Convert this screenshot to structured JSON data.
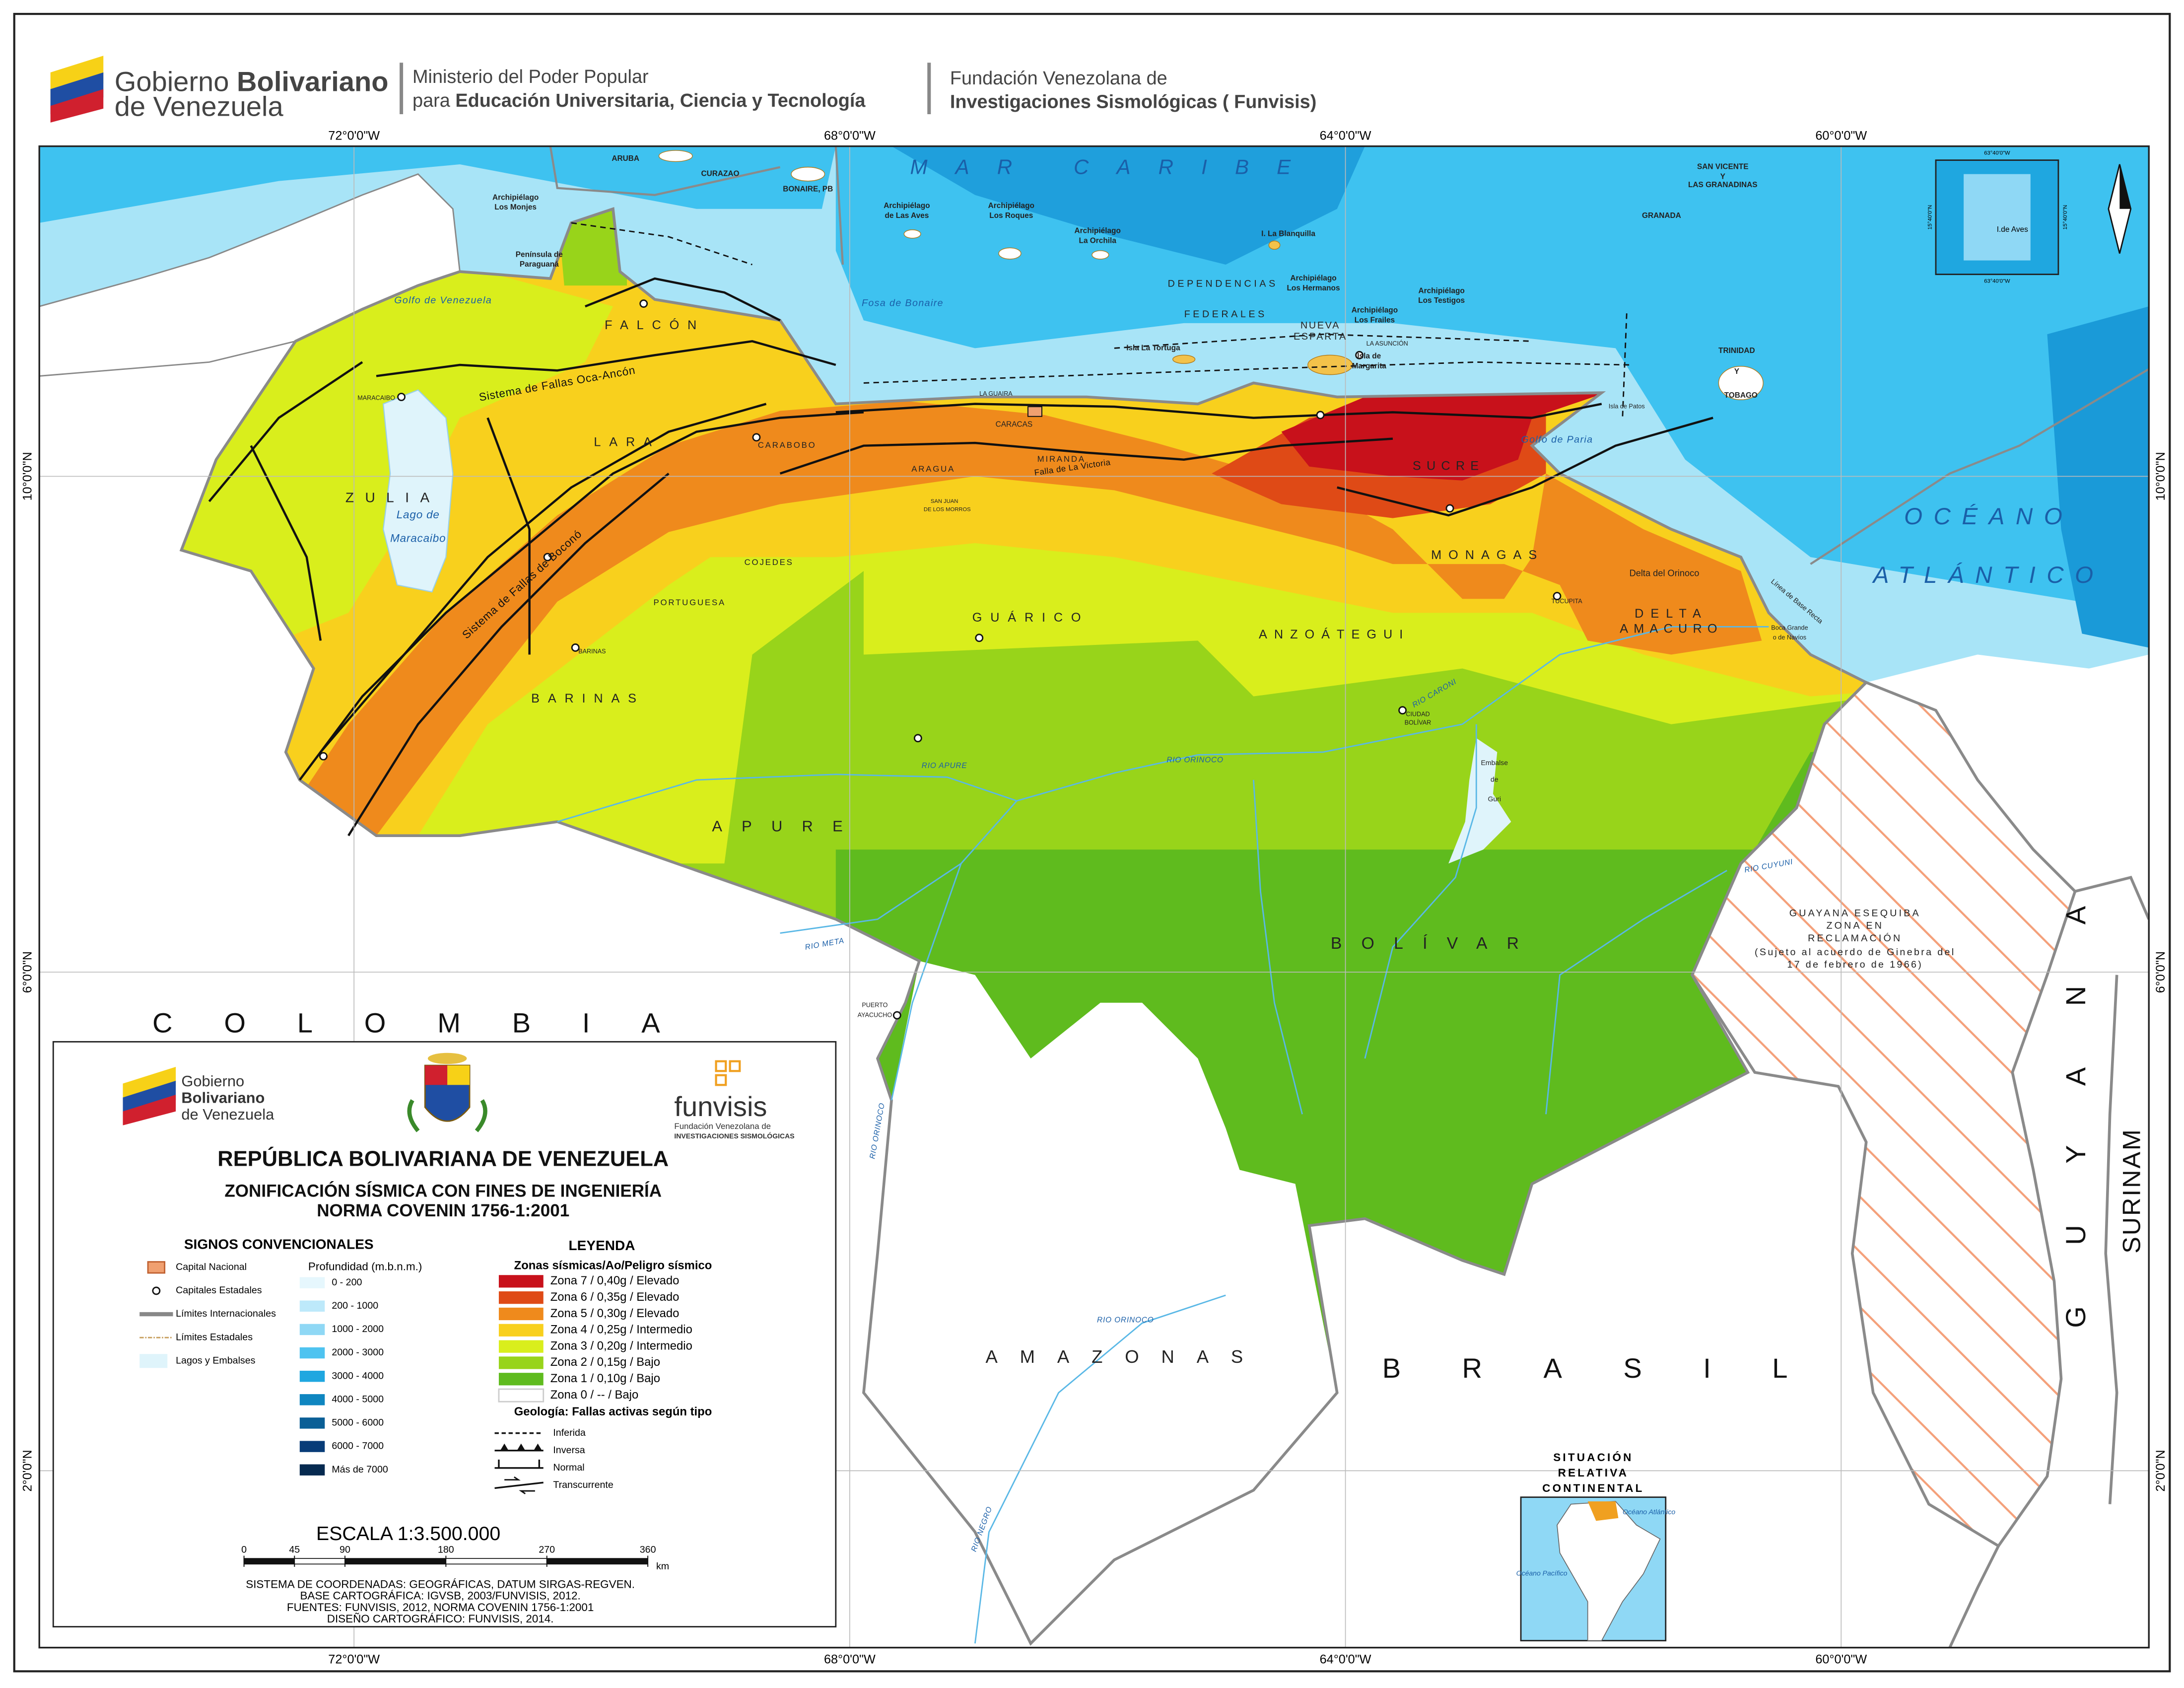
{
  "header": {
    "gov_logo": [
      "Gobierno",
      "Bolivariano",
      "de Venezuela"
    ],
    "ministry": [
      "Ministerio del Poder Popular",
      "para",
      "Educación Universitaria, Ciencia y Tecnología"
    ],
    "foundation": [
      "Fundación Venezolana de",
      "Investigaciones Sismológicas ( Funvisis)"
    ]
  },
  "graticule": {
    "longitudes": [
      "72°0'0\"W",
      "68°0'0\"W",
      "64°0'0\"W",
      "60°0'0\"W"
    ],
    "latitudes": [
      "10°0'0\"N",
      "6°0'0\"N",
      "2°0'0\"N"
    ]
  },
  "map_labels": {
    "countries": [
      "COLOMBIA",
      "BRASIL",
      "GUYANA",
      "SURINAM"
    ],
    "seas": [
      "MAR CARIBE",
      "OCÉANO",
      "ATLÁNTICO",
      "Golfo de Venezuela",
      "Fosa de Bonaire",
      "Golfo de Paria",
      "Lago de",
      "Maracaibo"
    ],
    "states": [
      "FALCÓN",
      "ZULIA",
      "LARA",
      "PORTUGUESA",
      "COJEDES",
      "BARINAS",
      "APURE",
      "GUÁRICO",
      "ANZOÁTEGUI",
      "MONAGAS",
      "SUCRE",
      "DELTA",
      "AMACURO",
      "BOLÍVAR",
      "AMAZONAS",
      "MIRANDA",
      "CARABOBO",
      "ARAGUA",
      "NUEVA",
      "ESPARTA",
      "DEPENDENCIAS",
      "FEDERALES"
    ],
    "islands": [
      "ARUBA",
      "CURAZAO",
      "BONAIRE, PB",
      "Archipiélago",
      "Los Monjes",
      "Península de",
      "Paraguaná",
      "Archipiélago",
      "de Las Aves",
      "Archipiélago",
      "Los Roques",
      "Archipiélago",
      "La Orchila",
      "I. La Blanquilla",
      "Archipiélago",
      "Los Hermanos",
      "Archipiélago",
      "Los Frailes",
      "Archipiélago",
      "Los Testigos",
      "Isla La Tortuga",
      "Isla de",
      "Margarita",
      "GRANADA",
      "SAN VICENTE",
      "Y",
      "LAS GRANADINAS",
      "TRINIDAD",
      "Y",
      "TOBAGO"
    ],
    "rivers": [
      "RIO APURE",
      "RIO ORINOCO",
      "RIO META",
      "RIO CARONI",
      "RIO CUYUNI",
      "RIO ORINOCO",
      "RIO NEGRO",
      "RIO ORINOCO"
    ],
    "places": [
      "MARACAIBO",
      "CARACAS",
      "TUCUPITA",
      "PUERTO",
      "AYACUCHO",
      "CIUDAD",
      "BOLÍVAR",
      "SAN JUAN",
      "DE LOS MORROS",
      "LA GUAIRA",
      "BARINAS",
      "Embalse",
      "de",
      "Guri",
      "Delta del Orinoco",
      "Boca Grande",
      "o de Navíos",
      "Línea de Base Recta",
      "LA ASUNCIÓN",
      "Isla de Patos"
    ],
    "faults": [
      "Sistema de Fallas Oca-Ancón",
      "Sistema de Fallas de Boconó",
      "Falla de La Victoria"
    ],
    "esequibo": [
      "GUAYANA ESEQUIBA",
      "ZONA EN",
      "RECLAMACIÓN",
      "(Sujeto al acuerdo de Ginebra del",
      "17 de febrero de 1966)"
    ]
  },
  "insets": {
    "aves": {
      "label": "I.de Aves",
      "coords": [
        "63°40'0\"W",
        "63°40'0\"W",
        "15°40'0\"N",
        "15°40'0\"N"
      ]
    },
    "continental": {
      "title": [
        "SITUACIÓN",
        "RELATIVA",
        "CONTINENTAL"
      ],
      "labels": [
        "Océano Atlántico",
        "Océano Pacífico"
      ]
    }
  },
  "legend": {
    "gov_logo": [
      "Gobierno",
      "Bolivariano",
      "de Venezuela"
    ],
    "funvisis_logo": [
      "funvisis",
      "Fundación Venezolana de",
      "INVESTIGACIONES SISMOLÓGICAS"
    ],
    "titles": [
      "REPÚBLICA BOLIVARIANA DE VENEZUELA",
      "ZONIFICACIÓN SÍSMICA CON FINES DE INGENIERÍA",
      "NORMA COVENIN 1756-1:2001"
    ],
    "signs_title": "SIGNOS CONVENCIONALES",
    "signs": [
      "Capital Nacional",
      "Capitales Estadales",
      "Límites Internacionales",
      "Límites Estadales",
      "Lagos y Embalses"
    ],
    "depth_title": "Profundidad (m.b.n.m.)",
    "depth": [
      {
        "label": "0 - 200",
        "color": "#e6f7fd"
      },
      {
        "label": "200 - 1000",
        "color": "#bde9fa"
      },
      {
        "label": "1000 - 2000",
        "color": "#8fd8f5"
      },
      {
        "label": "2000 - 3000",
        "color": "#4ec3f0"
      },
      {
        "label": "3000 - 4000",
        "color": "#1fa7e0"
      },
      {
        "label": "4000 - 5000",
        "color": "#0f86c0"
      },
      {
        "label": "5000 - 6000",
        "color": "#0a5f96"
      },
      {
        "label": "6000 - 7000",
        "color": "#083c78"
      },
      {
        "label": "Más de 7000",
        "color": "#062a50"
      }
    ],
    "zones_heading": "LEYENDA",
    "zones_title": "Zonas sísmicas/Ao/Peligro sísmico",
    "zones": [
      {
        "label": "Zona 7 / 0,40g / Elevado",
        "color": "#c8111b"
      },
      {
        "label": "Zona 6 / 0,35g / Elevado",
        "color": "#df4a16"
      },
      {
        "label": "Zona 5 / 0,30g / Elevado",
        "color": "#ef8a1c"
      },
      {
        "label": "Zona 4 / 0,25g / Intermedio",
        "color": "#f8d01d"
      },
      {
        "label": "Zona 3 / 0,20g / Intermedio",
        "color": "#d9ee1c"
      },
      {
        "label": "Zona 2 / 0,15g / Bajo",
        "color": "#98d41a"
      },
      {
        "label": "Zona 1 / 0,10g / Bajo",
        "color": "#5fbb1e"
      },
      {
        "label": "Zona 0 /    --    / Bajo",
        "color": "#ffffff"
      }
    ],
    "geology_title": "Geología: Fallas activas según tipo",
    "geology": [
      "Inferida",
      "Inversa",
      "Normal",
      "Transcurrente"
    ],
    "scale_title": "ESCALA  1:3.500.000",
    "scale_ticks": [
      0,
      45,
      90,
      180,
      270,
      360
    ],
    "scale_unit": "km",
    "credits": [
      "SISTEMA DE COORDENADAS: GEOGRÁFICAS, DATUM SIRGAS-REGVEN.",
      "BASE CARTOGRÁFICA: IGVSB, 2003/FUNVISIS, 2012.",
      "FUENTES: FUNVISIS, 2012, NORMA COVENIN 1756-1:2001",
      "DISEÑO CARTOGRÁFICO: FUNVISIS, 2014."
    ]
  }
}
